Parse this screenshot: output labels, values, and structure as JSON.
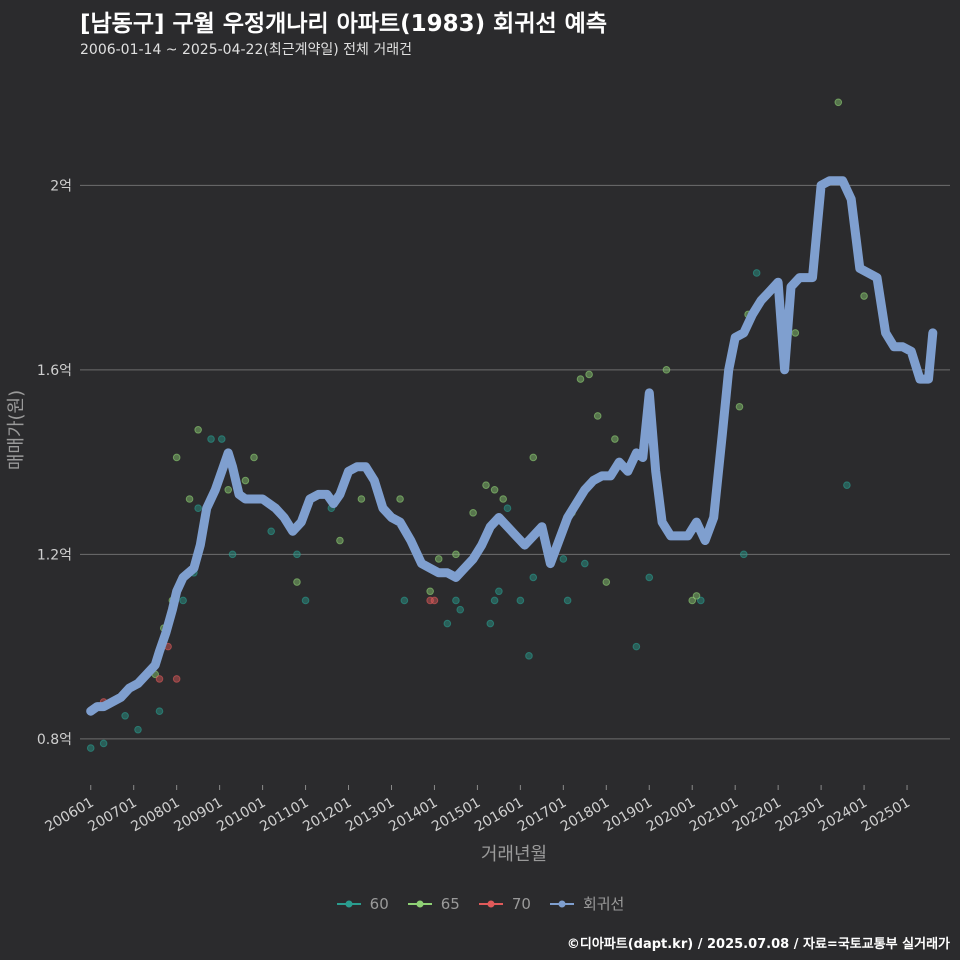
{
  "chart_data": {
    "type": "scatter",
    "title": "[남동구] 구월 우정개나리 아파트(1983) 회귀선 예측",
    "subtitle": "2006-01-14 ~ 2025-04-22(최근계약일) 전체 거래건",
    "xlabel": "거래년월",
    "ylabel": "매매가(원)",
    "ylim": [
      0.7,
      2.25
    ],
    "xlim": [
      2005.75,
      2026.0
    ],
    "y_ticks": [
      0.8,
      1.2,
      1.6,
      2.0
    ],
    "y_tick_labels": [
      "0.8억",
      "1.2억",
      "1.6억",
      "2억"
    ],
    "x_tick_labels": [
      "200601",
      "200701",
      "200801",
      "200901",
      "201001",
      "201101",
      "201201",
      "201301",
      "201401",
      "201501",
      "201601",
      "201701",
      "201801",
      "201901",
      "202001",
      "202101",
      "202201",
      "202301",
      "202401",
      "202501"
    ],
    "legend": [
      {
        "name": "60",
        "color": "#2a9d8f"
      },
      {
        "name": "65",
        "color": "#8fd175"
      },
      {
        "name": "70",
        "color": "#e05a5a"
      },
      {
        "name": "회귀선",
        "color": "#7f9fcf"
      }
    ],
    "series": [
      {
        "name": "60",
        "color": "#2a9d8f",
        "points": [
          [
            2006.0,
            0.78
          ],
          [
            2006.3,
            0.79
          ],
          [
            2006.8,
            0.85
          ],
          [
            2007.1,
            0.82
          ],
          [
            2007.6,
            0.86
          ],
          [
            2008.15,
            1.1
          ],
          [
            2008.4,
            1.16
          ],
          [
            2008.5,
            1.3
          ],
          [
            2008.8,
            1.45
          ],
          [
            2009.05,
            1.45
          ],
          [
            2009.3,
            1.2
          ],
          [
            2010.2,
            1.25
          ],
          [
            2010.8,
            1.2
          ],
          [
            2011.0,
            1.1
          ],
          [
            2011.6,
            1.3
          ],
          [
            2013.3,
            1.1
          ],
          [
            2014.3,
            1.05
          ],
          [
            2014.5,
            1.1
          ],
          [
            2014.6,
            1.08
          ],
          [
            2015.3,
            1.05
          ],
          [
            2015.4,
            1.1
          ],
          [
            2015.5,
            1.12
          ],
          [
            2015.7,
            1.3
          ],
          [
            2016.0,
            1.1
          ],
          [
            2016.2,
            0.98
          ],
          [
            2016.3,
            1.15
          ],
          [
            2017.0,
            1.19
          ],
          [
            2017.1,
            1.1
          ],
          [
            2017.5,
            1.18
          ],
          [
            2018.7,
            1.0
          ],
          [
            2019.0,
            1.15
          ],
          [
            2020.2,
            1.1
          ],
          [
            2021.2,
            1.2
          ],
          [
            2021.5,
            1.81
          ],
          [
            2022.2,
            1.7
          ],
          [
            2023.6,
            1.35
          ]
        ]
      },
      {
        "name": "65",
        "color": "#8fd175",
        "points": [
          [
            2007.5,
            0.94
          ],
          [
            2007.7,
            1.04
          ],
          [
            2007.9,
            1.1
          ],
          [
            2008.0,
            1.41
          ],
          [
            2008.3,
            1.32
          ],
          [
            2008.5,
            1.47
          ],
          [
            2009.2,
            1.34
          ],
          [
            2009.6,
            1.36
          ],
          [
            2009.8,
            1.41
          ],
          [
            2010.8,
            1.14
          ],
          [
            2011.8,
            1.23
          ],
          [
            2012.3,
            1.32
          ],
          [
            2013.2,
            1.32
          ],
          [
            2013.6,
            1.2
          ],
          [
            2013.9,
            1.12
          ],
          [
            2014.1,
            1.19
          ],
          [
            2014.5,
            1.2
          ],
          [
            2014.9,
            1.29
          ],
          [
            2015.2,
            1.35
          ],
          [
            2015.4,
            1.34
          ],
          [
            2015.6,
            1.32
          ],
          [
            2016.3,
            1.41
          ],
          [
            2017.2,
            1.29
          ],
          [
            2017.4,
            1.58
          ],
          [
            2017.6,
            1.59
          ],
          [
            2017.8,
            1.5
          ],
          [
            2018.0,
            1.14
          ],
          [
            2018.2,
            1.45
          ],
          [
            2019.4,
            1.6
          ],
          [
            2020.0,
            1.1
          ],
          [
            2020.1,
            1.11
          ],
          [
            2021.1,
            1.52
          ],
          [
            2021.3,
            1.72
          ],
          [
            2022.4,
            1.68
          ],
          [
            2023.4,
            2.18
          ],
          [
            2024.0,
            1.76
          ]
        ]
      },
      {
        "name": "70",
        "color": "#e05a5a",
        "points": [
          [
            2006.3,
            0.88
          ],
          [
            2006.5,
            0.88
          ],
          [
            2007.6,
            0.93
          ],
          [
            2007.8,
            1.0
          ],
          [
            2008.0,
            0.93
          ],
          [
            2011.0,
            1.3
          ],
          [
            2013.9,
            1.1
          ],
          [
            2014.0,
            1.1
          ]
        ]
      }
    ],
    "regression": [
      [
        2006.0,
        0.86
      ],
      [
        2006.15,
        0.87
      ],
      [
        2006.3,
        0.87
      ],
      [
        2006.5,
        0.88
      ],
      [
        2006.7,
        0.89
      ],
      [
        2006.9,
        0.91
      ],
      [
        2007.1,
        0.92
      ],
      [
        2007.3,
        0.94
      ],
      [
        2007.5,
        0.96
      ],
      [
        2007.6,
        0.99
      ],
      [
        2007.75,
        1.03
      ],
      [
        2007.9,
        1.08
      ],
      [
        2008.0,
        1.12
      ],
      [
        2008.15,
        1.15
      ],
      [
        2008.4,
        1.17
      ],
      [
        2008.55,
        1.22
      ],
      [
        2008.7,
        1.3
      ],
      [
        2008.9,
        1.34
      ],
      [
        2009.05,
        1.38
      ],
      [
        2009.2,
        1.42
      ],
      [
        2009.3,
        1.39
      ],
      [
        2009.45,
        1.33
      ],
      [
        2009.6,
        1.32
      ],
      [
        2009.8,
        1.32
      ],
      [
        2010.0,
        1.32
      ],
      [
        2010.3,
        1.3
      ],
      [
        2010.5,
        1.28
      ],
      [
        2010.7,
        1.25
      ],
      [
        2010.9,
        1.27
      ],
      [
        2011.1,
        1.32
      ],
      [
        2011.3,
        1.33
      ],
      [
        2011.5,
        1.33
      ],
      [
        2011.65,
        1.31
      ],
      [
        2011.8,
        1.33
      ],
      [
        2012.0,
        1.38
      ],
      [
        2012.2,
        1.39
      ],
      [
        2012.4,
        1.39
      ],
      [
        2012.6,
        1.36
      ],
      [
        2012.8,
        1.3
      ],
      [
        2013.0,
        1.28
      ],
      [
        2013.2,
        1.27
      ],
      [
        2013.45,
        1.23
      ],
      [
        2013.7,
        1.18
      ],
      [
        2013.9,
        1.17
      ],
      [
        2014.1,
        1.16
      ],
      [
        2014.3,
        1.16
      ],
      [
        2014.5,
        1.15
      ],
      [
        2014.7,
        1.17
      ],
      [
        2014.9,
        1.19
      ],
      [
        2015.1,
        1.22
      ],
      [
        2015.3,
        1.26
      ],
      [
        2015.5,
        1.28
      ],
      [
        2015.7,
        1.26
      ],
      [
        2015.9,
        1.24
      ],
      [
        2016.1,
        1.22
      ],
      [
        2016.3,
        1.24
      ],
      [
        2016.5,
        1.26
      ],
      [
        2016.7,
        1.18
      ],
      [
        2016.9,
        1.23
      ],
      [
        2017.1,
        1.28
      ],
      [
        2017.3,
        1.31
      ],
      [
        2017.5,
        1.34
      ],
      [
        2017.7,
        1.36
      ],
      [
        2017.9,
        1.37
      ],
      [
        2018.1,
        1.37
      ],
      [
        2018.3,
        1.4
      ],
      [
        2018.5,
        1.38
      ],
      [
        2018.7,
        1.42
      ],
      [
        2018.85,
        1.41
      ],
      [
        2019.0,
        1.55
      ],
      [
        2019.15,
        1.38
      ],
      [
        2019.3,
        1.27
      ],
      [
        2019.5,
        1.24
      ],
      [
        2019.7,
        1.24
      ],
      [
        2019.9,
        1.24
      ],
      [
        2020.1,
        1.27
      ],
      [
        2020.3,
        1.23
      ],
      [
        2020.5,
        1.28
      ],
      [
        2020.7,
        1.46
      ],
      [
        2020.85,
        1.6
      ],
      [
        2021.0,
        1.67
      ],
      [
        2021.2,
        1.68
      ],
      [
        2021.4,
        1.72
      ],
      [
        2021.6,
        1.75
      ],
      [
        2021.8,
        1.77
      ],
      [
        2022.0,
        1.79
      ],
      [
        2022.15,
        1.6
      ],
      [
        2022.3,
        1.78
      ],
      [
        2022.5,
        1.8
      ],
      [
        2022.8,
        1.8
      ],
      [
        2023.0,
        2.0
      ],
      [
        2023.2,
        2.01
      ],
      [
        2023.5,
        2.01
      ],
      [
        2023.7,
        1.97
      ],
      [
        2023.9,
        1.82
      ],
      [
        2024.1,
        1.81
      ],
      [
        2024.3,
        1.8
      ],
      [
        2024.5,
        1.68
      ],
      [
        2024.7,
        1.65
      ],
      [
        2024.9,
        1.65
      ],
      [
        2025.1,
        1.64
      ],
      [
        2025.3,
        1.58
      ],
      [
        2025.5,
        1.58
      ],
      [
        2025.6,
        1.68
      ]
    ]
  },
  "caption": "©디아파트(dapt.kr) / 2025.07.08 / 자료=국토교통부 실거래가"
}
